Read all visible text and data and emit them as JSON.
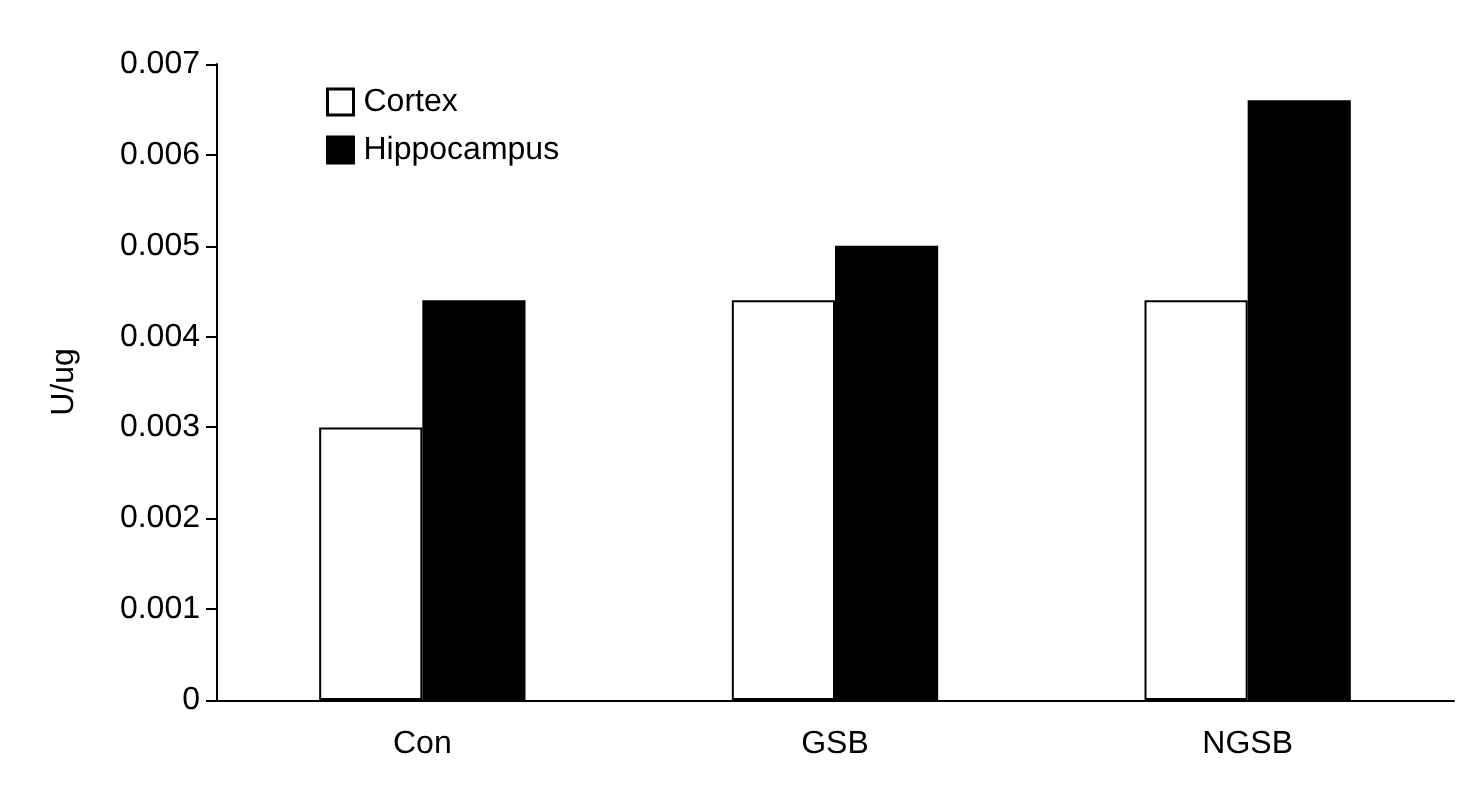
{
  "chart_data": {
    "type": "bar",
    "ylabel": "U/ug",
    "categories": [
      "Con",
      "GSB",
      "NGSB"
    ],
    "series": [
      {
        "name": "Cortex",
        "color": "#ffffff",
        "values": [
          0.003,
          0.0044,
          0.0044
        ]
      },
      {
        "name": "Hippocampus",
        "color": "#000000",
        "values": [
          0.0044,
          0.005,
          0.0066
        ]
      }
    ],
    "ylim": [
      0,
      0.007
    ],
    "yticks": [
      0,
      0.001,
      0.002,
      0.003,
      0.004,
      0.005,
      0.006,
      0.007
    ],
    "grid": false,
    "legend": "top left"
  }
}
